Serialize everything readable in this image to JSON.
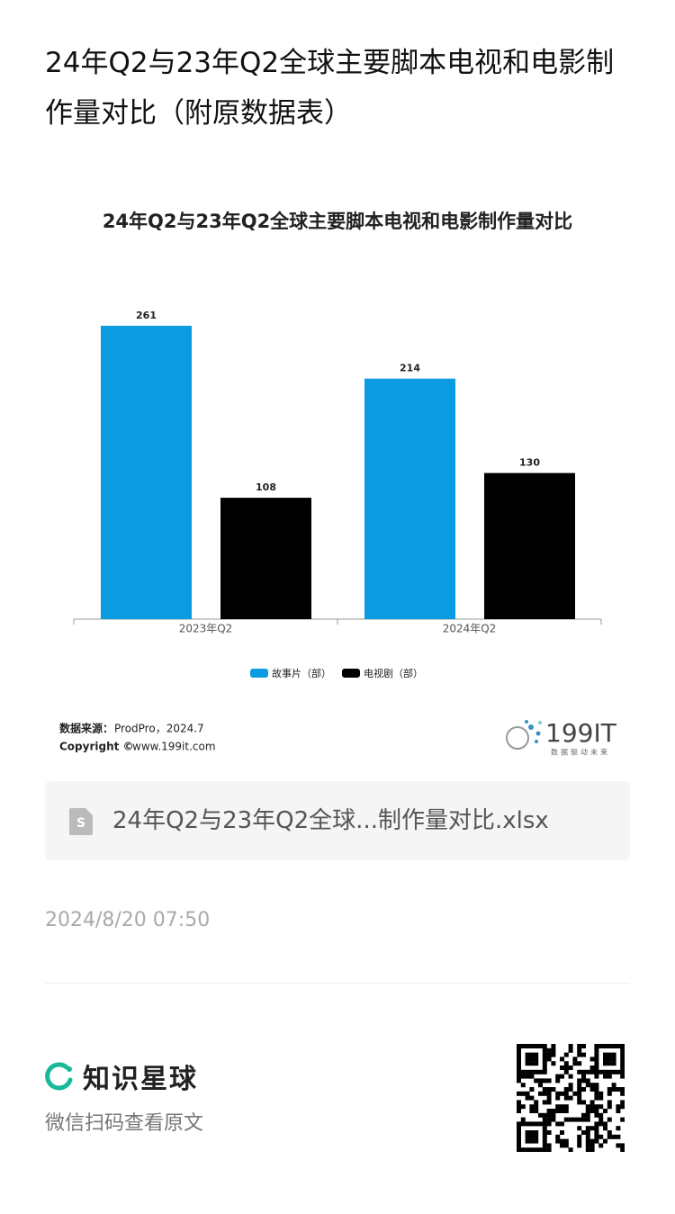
{
  "header": {
    "title": "24年Q2与23年Q2全球主要脚本电视和电影制作量对比（附原数据表）"
  },
  "chart_data": {
    "type": "bar",
    "title": "24年Q2与23年Q2全球主要脚本电视和电影制作量对比",
    "categories": [
      "2023年Q2",
      "2024年Q2"
    ],
    "series": [
      {
        "name": "故事片（部）",
        "color": "#0b9be0",
        "values": [
          261,
          214
        ]
      },
      {
        "name": "电视剧（部）",
        "color": "#000000",
        "values": [
          108,
          130
        ]
      }
    ],
    "legend": "bottom",
    "source_label": "数据来源：",
    "source": "ProdPro，2024.7",
    "copyright_label": "Copyright ©",
    "copyright": "www.199it.com",
    "logo": "199IT",
    "logo_sub": "数据驱动未来"
  },
  "attachment": {
    "filename": "24年Q2与23年Q2全球...制作量对比.xlsx"
  },
  "date": "2024/8/20 07:50",
  "footer": {
    "brand": "知识星球",
    "hint": "微信扫码查看原文"
  }
}
